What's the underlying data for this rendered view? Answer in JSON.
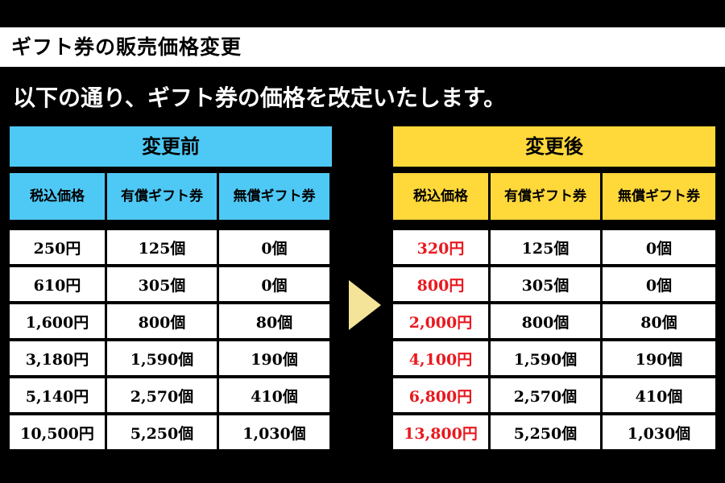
{
  "title": "ギフト券の販売価格変更",
  "subtitle": "以下の通り、ギフト券の価格を改定いたします。",
  "colors": {
    "before": "#4ec9f5",
    "after": "#ffd83a",
    "changed_price": "#e8191f",
    "arrow": "#f3e49a"
  },
  "before": {
    "header": "変更前",
    "columns": [
      "税込価格",
      "有償ギフト券",
      "無償ギフト券"
    ],
    "rows": [
      [
        "250円",
        "125個",
        "0個"
      ],
      [
        "610円",
        "305個",
        "0個"
      ],
      [
        "1,600円",
        "800個",
        "80個"
      ],
      [
        "3,180円",
        "1,590個",
        "190個"
      ],
      [
        "5,140円",
        "2,570個",
        "410個"
      ],
      [
        "10,500円",
        "5,250個",
        "1,030個"
      ]
    ]
  },
  "after": {
    "header": "変更後",
    "columns": [
      "税込価格",
      "有償ギフト券",
      "無償ギフト券"
    ],
    "rows": [
      [
        "320円",
        "125個",
        "0個"
      ],
      [
        "800円",
        "305個",
        "0個"
      ],
      [
        "2,000円",
        "800個",
        "80個"
      ],
      [
        "4,100円",
        "1,590個",
        "190個"
      ],
      [
        "6,800円",
        "2,570個",
        "410個"
      ],
      [
        "13,800円",
        "5,250個",
        "1,030個"
      ]
    ]
  },
  "arrow_icon": "right-triangle-arrow"
}
